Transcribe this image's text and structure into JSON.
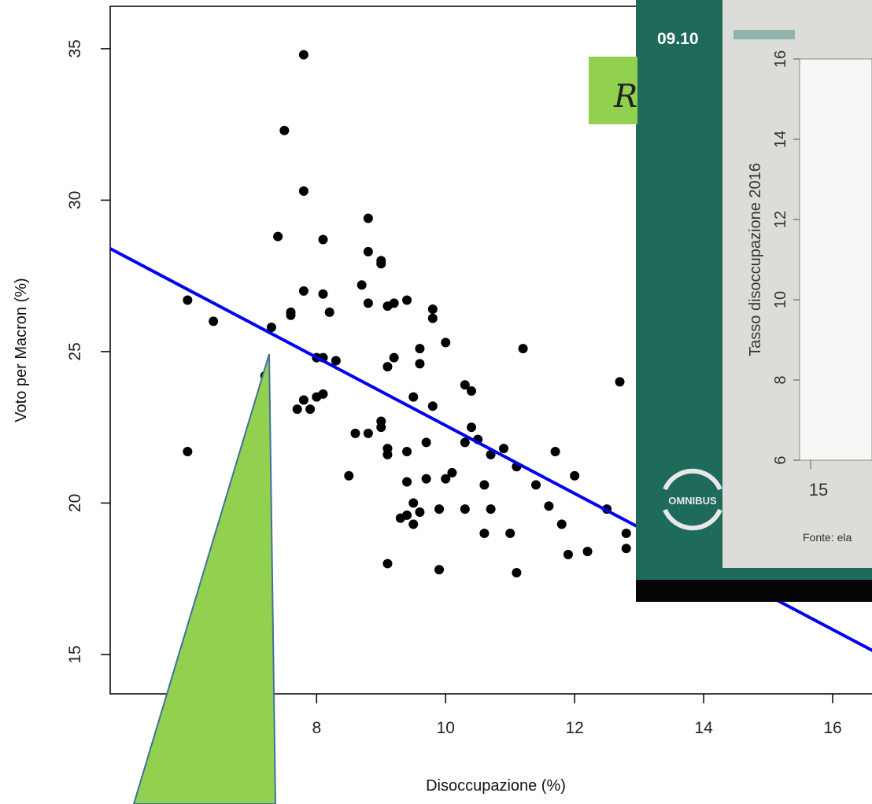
{
  "chart_data": {
    "type": "scatter",
    "xlabel": "Disoccupazione (%)",
    "ylabel": "Voto per Macron (%)",
    "xlim": [
      4.8,
      17.0
    ],
    "ylim": [
      13.7,
      36.4
    ],
    "x_ticks": [
      8,
      10,
      12,
      14,
      16
    ],
    "y_ticks": [
      15,
      20,
      25,
      30,
      35
    ],
    "grid": false,
    "regression_line": {
      "x": [
        4.8,
        17.0
      ],
      "y": [
        28.4,
        14.7
      ],
      "color": "#0000ee"
    },
    "points": [
      [
        7.8,
        34.8
      ],
      [
        7.5,
        32.3
      ],
      [
        7.8,
        30.3
      ],
      [
        8.8,
        29.4
      ],
      [
        7.4,
        28.8
      ],
      [
        8.1,
        28.7
      ],
      [
        8.8,
        28.3
      ],
      [
        9.0,
        28.0
      ],
      [
        9.0,
        27.9
      ],
      [
        8.7,
        27.2
      ],
      [
        7.8,
        27.0
      ],
      [
        8.1,
        26.9
      ],
      [
        6.0,
        26.7
      ],
      [
        9.4,
        26.7
      ],
      [
        9.2,
        26.6
      ],
      [
        8.8,
        26.6
      ],
      [
        9.1,
        26.5
      ],
      [
        9.8,
        26.4
      ],
      [
        7.6,
        26.3
      ],
      [
        8.2,
        26.3
      ],
      [
        7.6,
        26.2
      ],
      [
        9.8,
        26.1
      ],
      [
        6.4,
        26.0
      ],
      [
        7.3,
        25.8
      ],
      [
        10.0,
        25.3
      ],
      [
        11.2,
        25.1
      ],
      [
        9.6,
        25.1
      ],
      [
        8.0,
        24.8
      ],
      [
        8.1,
        24.8
      ],
      [
        9.2,
        24.8
      ],
      [
        8.3,
        24.7
      ],
      [
        9.6,
        24.6
      ],
      [
        9.1,
        24.5
      ],
      [
        7.2,
        24.2
      ],
      [
        12.7,
        24.0
      ],
      [
        10.3,
        23.9
      ],
      [
        10.4,
        23.7
      ],
      [
        8.1,
        23.6
      ],
      [
        8.0,
        23.5
      ],
      [
        9.5,
        23.5
      ],
      [
        7.8,
        23.4
      ],
      [
        9.8,
        23.2
      ],
      [
        7.7,
        23.1
      ],
      [
        7.9,
        23.1
      ],
      [
        9.0,
        22.7
      ],
      [
        9.0,
        22.5
      ],
      [
        10.4,
        22.5
      ],
      [
        8.6,
        22.3
      ],
      [
        8.8,
        22.3
      ],
      [
        10.5,
        22.1
      ],
      [
        10.3,
        22.0
      ],
      [
        9.7,
        22.0
      ],
      [
        10.9,
        21.8
      ],
      [
        9.1,
        21.8
      ],
      [
        9.4,
        21.7
      ],
      [
        6.0,
        21.7
      ],
      [
        11.7,
        21.7
      ],
      [
        10.7,
        21.6
      ],
      [
        9.1,
        21.6
      ],
      [
        11.1,
        21.2
      ],
      [
        10.1,
        21.0
      ],
      [
        8.5,
        20.9
      ],
      [
        12.0,
        20.9
      ],
      [
        9.7,
        20.8
      ],
      [
        10.0,
        20.8
      ],
      [
        9.4,
        20.7
      ],
      [
        10.6,
        20.6
      ],
      [
        11.4,
        20.6
      ],
      [
        9.5,
        20.0
      ],
      [
        11.6,
        19.9
      ],
      [
        10.3,
        19.8
      ],
      [
        10.7,
        19.8
      ],
      [
        12.5,
        19.8
      ],
      [
        9.9,
        19.8
      ],
      [
        9.6,
        19.7
      ],
      [
        9.4,
        19.6
      ],
      [
        9.3,
        19.5
      ],
      [
        9.5,
        19.3
      ],
      [
        11.8,
        19.3
      ],
      [
        10.6,
        19.0
      ],
      [
        11.0,
        19.0
      ],
      [
        12.8,
        19.0
      ],
      [
        12.8,
        18.5
      ],
      [
        12.2,
        18.4
      ],
      [
        11.9,
        18.3
      ],
      [
        9.1,
        18.0
      ],
      [
        9.9,
        17.8
      ],
      [
        11.1,
        17.7
      ]
    ]
  },
  "inset": {
    "time": "09.10",
    "formula_fragment": "R",
    "ylabel": "Tasso disoccupazione 2016",
    "y_ticks": [
      "6",
      "8",
      "10",
      "12",
      "14",
      "16"
    ],
    "x_tick": "15",
    "logo_text": "OMNIBUS",
    "source_text": "Fonte: ela"
  },
  "colors": {
    "point": "#000000",
    "line": "#0000ee",
    "callout": "#92d050",
    "callout_border": "#41719c",
    "inset_bg": "#1e6a5b",
    "inset_panel": "#dcdcd8"
  }
}
